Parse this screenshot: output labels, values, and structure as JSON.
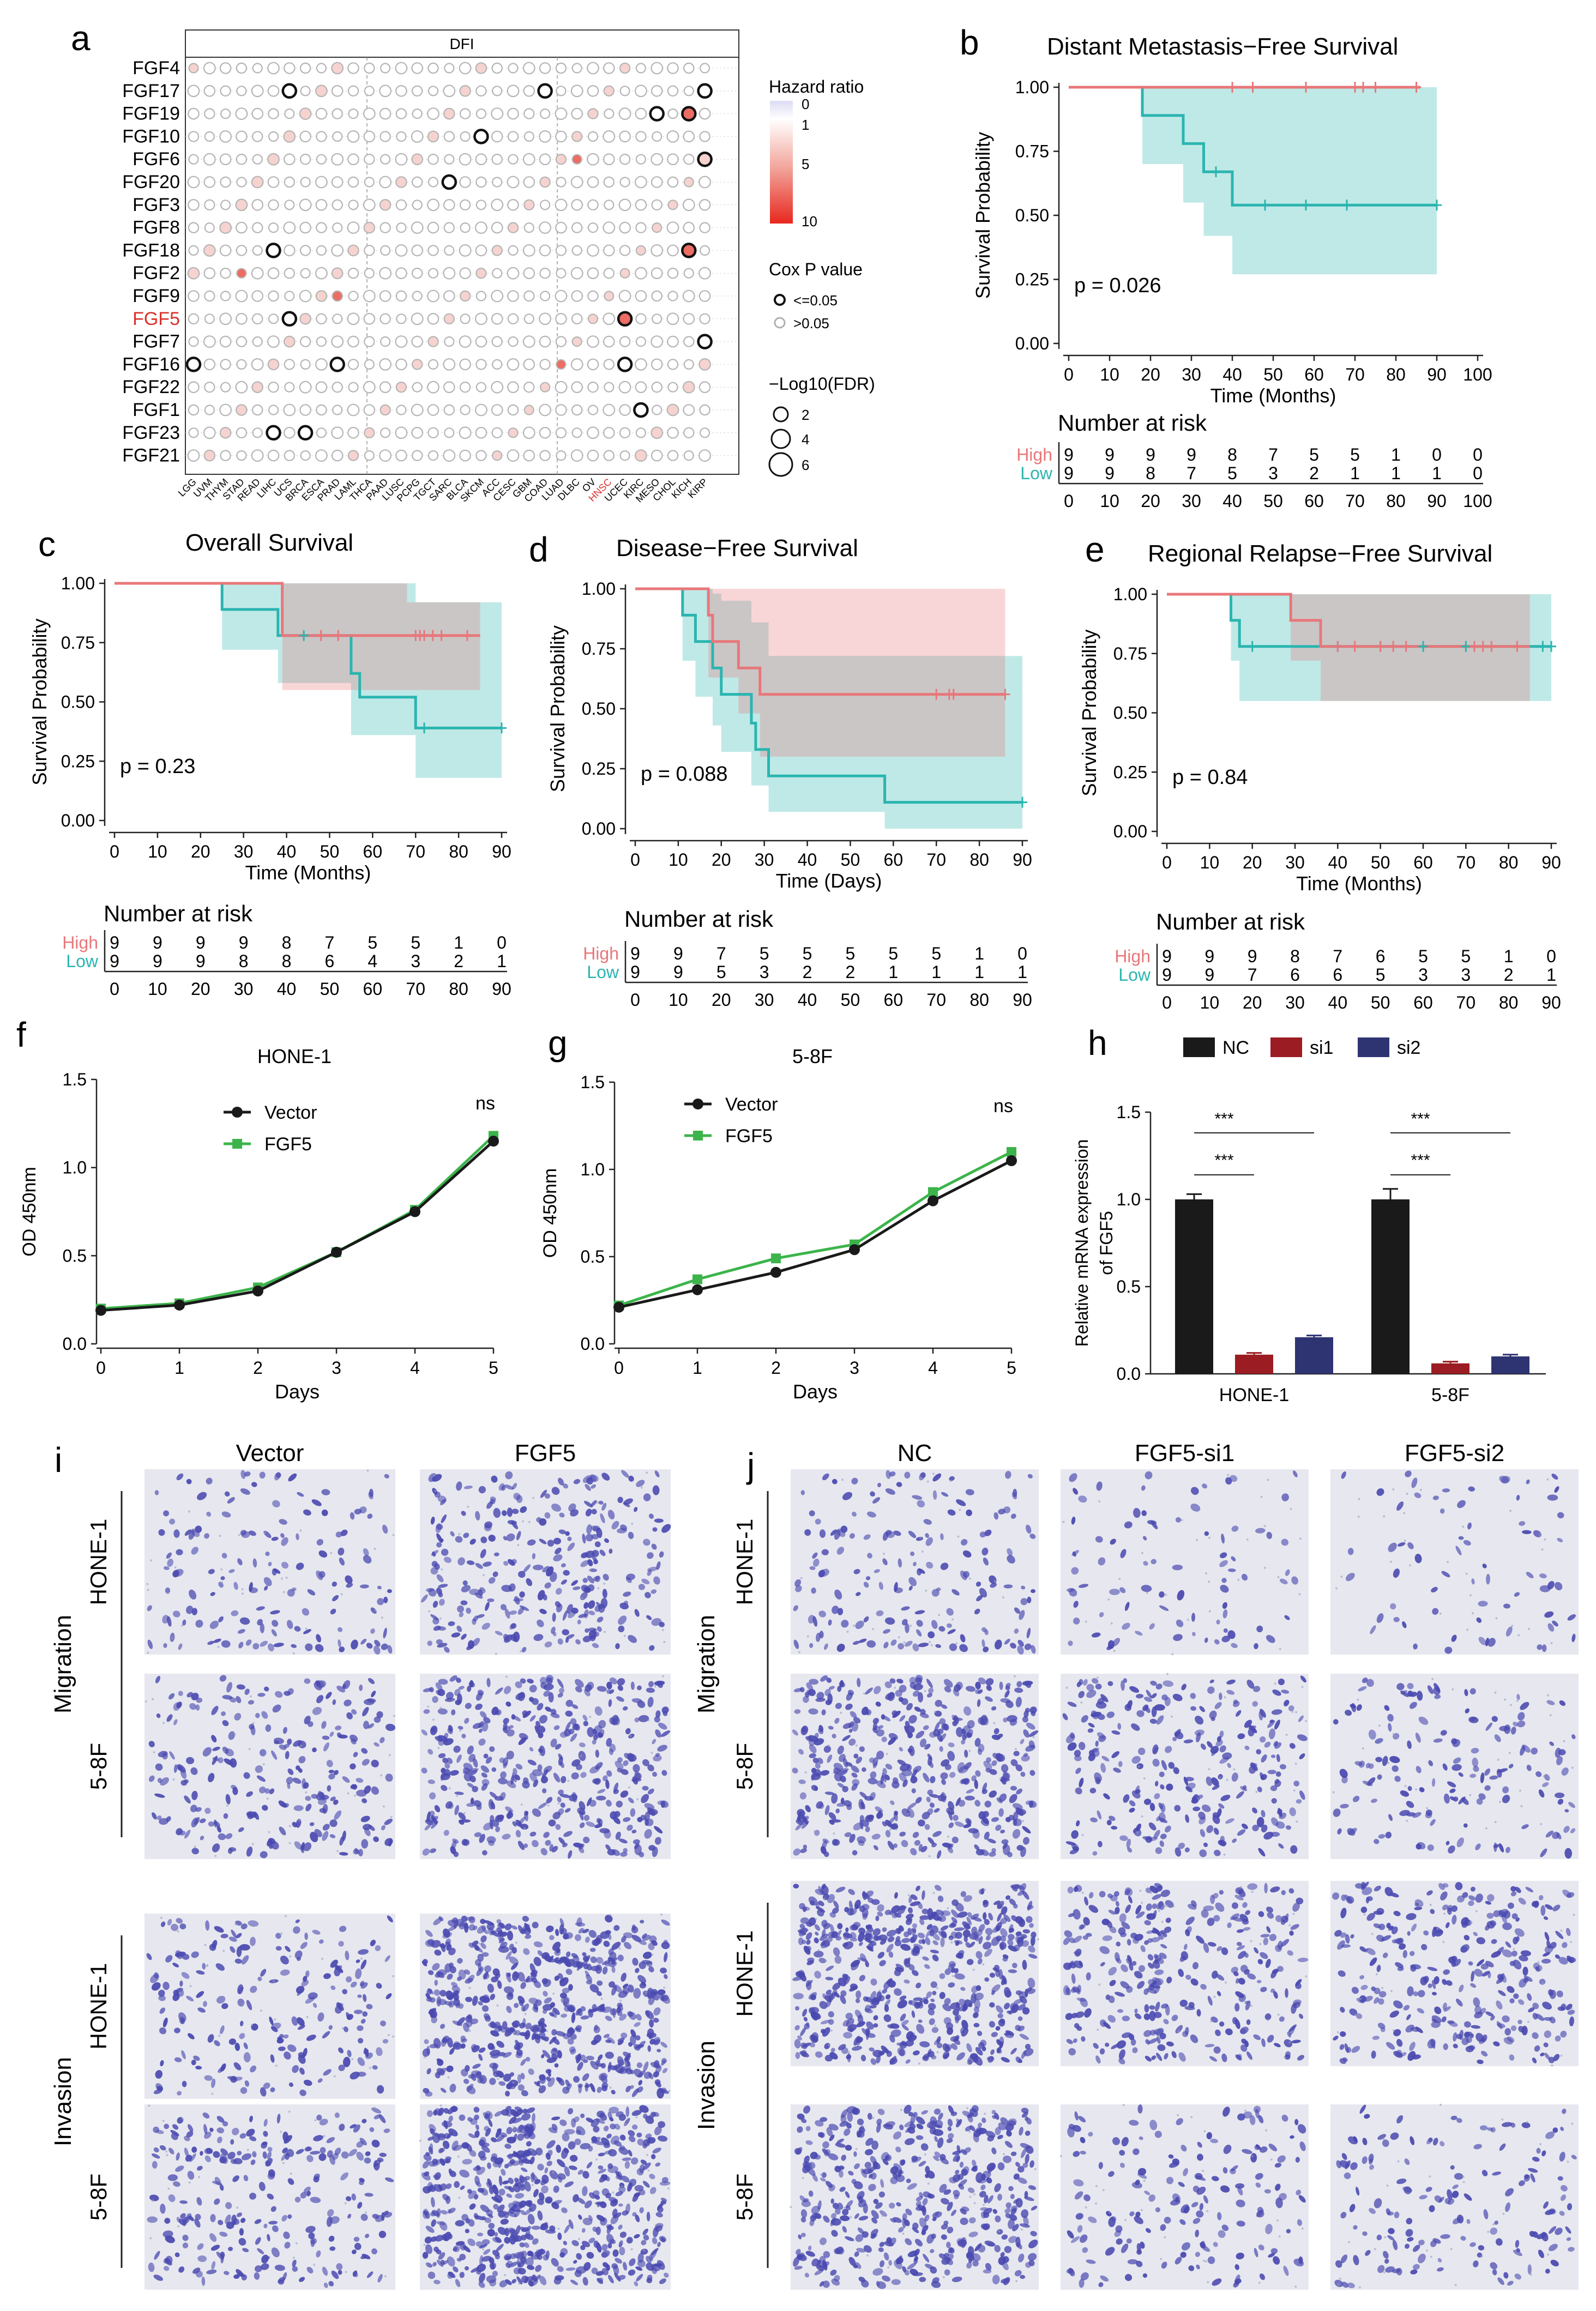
{
  "panel_labels": {
    "a": "a",
    "b": "b",
    "c": "c",
    "d": "d",
    "e": "e",
    "f": "f",
    "g": "g",
    "h": "h",
    "i": "i",
    "j": "j"
  },
  "panel_a": {
    "strip": "DFI",
    "genes": [
      "FGF4",
      "FGF17",
      "FGF19",
      "FGF10",
      "FGF6",
      "FGF20",
      "FGF3",
      "FGF8",
      "FGF18",
      "FGF2",
      "FGF9",
      "FGF5",
      "FGF7",
      "FGF16",
      "FGF22",
      "FGF1",
      "FGF23",
      "FGF21"
    ],
    "highlight_gene": "FGF5",
    "cancers": [
      "LGG",
      "UVM",
      "THYM",
      "STAD",
      "READ",
      "LIHC",
      "UCS",
      "BRCA",
      "ESCA",
      "PRAD",
      "LAML",
      "THCA",
      "PAAD",
      "LUSC",
      "PCPG",
      "TGCT",
      "SARC",
      "BLCA",
      "SKCM",
      "ACC",
      "CESC",
      "GBM",
      "COAD",
      "LUAD",
      "DLBC",
      "OV",
      "HNSC",
      "UCEC",
      "KIRC",
      "MESO",
      "CHOL",
      "KICH",
      "KIRP"
    ],
    "highlight_cancer": "HNSC",
    "legend": {
      "hr_title": "Hazard ratio",
      "hr_ticks": [
        "0",
        "1",
        "5",
        "10"
      ],
      "p_title": "Cox P value",
      "p_items": [
        "<=0.05",
        ">0.05"
      ],
      "fdr_title": "−Log10(FDR)",
      "fdr_items": [
        "2",
        "4",
        "6"
      ]
    },
    "significant": [
      {
        "gene": "FGF17",
        "cancer": "UCS"
      },
      {
        "gene": "FGF17",
        "cancer": "COAD"
      },
      {
        "gene": "FGF17",
        "cancer": "KIRP"
      },
      {
        "gene": "FGF19",
        "cancer": "MESO"
      },
      {
        "gene": "FGF19",
        "cancer": "KICH"
      },
      {
        "gene": "FGF10",
        "cancer": "SKCM"
      },
      {
        "gene": "FGF6",
        "cancer": "KIRP"
      },
      {
        "gene": "FGF20",
        "cancer": "SARC"
      },
      {
        "gene": "FGF18",
        "cancer": "LIHC"
      },
      {
        "gene": "FGF18",
        "cancer": "KICH"
      },
      {
        "gene": "FGF5",
        "cancer": "UCS"
      },
      {
        "gene": "FGF5",
        "cancer": "UCEC"
      },
      {
        "gene": "FGF7",
        "cancer": "KIRP"
      },
      {
        "gene": "FGF16",
        "cancer": "LGG"
      },
      {
        "gene": "FGF16",
        "cancer": "PRAD"
      },
      {
        "gene": "FGF16",
        "cancer": "UCEC"
      },
      {
        "gene": "FGF1",
        "cancer": "KIRC"
      },
      {
        "gene": "FGF23",
        "cancer": "LIHC"
      },
      {
        "gene": "FGF23",
        "cancer": "BRCA"
      }
    ],
    "red_cells": [
      {
        "gene": "FGF19",
        "cancer": "KICH"
      },
      {
        "gene": "FGF5",
        "cancer": "UCEC"
      },
      {
        "gene": "FGF18",
        "cancer": "KICH"
      },
      {
        "gene": "FGF2",
        "cancer": "STAD"
      },
      {
        "gene": "FGF9",
        "cancer": "PRAD"
      },
      {
        "gene": "FGF16",
        "cancer": "LUAD"
      },
      {
        "gene": "FGF6",
        "cancer": "DLBC"
      }
    ]
  },
  "km": {
    "risk_title": "Number at risk",
    "high_label": "High",
    "low_label": "Low",
    "high_color": "#e8777a",
    "low_color": "#2bb5b0",
    "ylabel": "Survival Probability",
    "y_ticks": [
      "0.00",
      "0.25",
      "0.50",
      "0.75",
      "1.00"
    ],
    "panels": [
      {
        "id": "b",
        "title": "Distant Metastasis−Free Survival",
        "xlabel": "Time (Months)",
        "p": "p = 0.026",
        "x_ticks": [
          0,
          10,
          20,
          30,
          40,
          50,
          60,
          70,
          80,
          90,
          100
        ],
        "xmax": 100,
        "high_risk": [
          "9",
          "9",
          "9",
          "9",
          "8",
          "7",
          "5",
          "5",
          "1",
          "0",
          "0"
        ],
        "low_risk": [
          "9",
          "9",
          "8",
          "7",
          "5",
          "3",
          "2",
          "1",
          "1",
          "1",
          "0"
        ],
        "high_steps": [
          [
            0,
            1.0
          ],
          [
            86,
            1.0
          ]
        ],
        "low_steps": [
          [
            0,
            1.0
          ],
          [
            18,
            1.0
          ],
          [
            18,
            0.89
          ],
          [
            28,
            0.89
          ],
          [
            28,
            0.78
          ],
          [
            33,
            0.78
          ],
          [
            33,
            0.67
          ],
          [
            40,
            0.67
          ],
          [
            40,
            0.54
          ],
          [
            90,
            0.54
          ]
        ],
        "high_band": [
          [
            0,
            1.0,
            1.0
          ],
          [
            86,
            1.0,
            1.0
          ]
        ],
        "low_band": [
          [
            0,
            1.0,
            1.0
          ],
          [
            18,
            1.0,
            1.0
          ],
          [
            18,
            0.7,
            1.0
          ],
          [
            28,
            0.7,
            1.0
          ],
          [
            28,
            0.55,
            1.0
          ],
          [
            33,
            0.55,
            1.0
          ],
          [
            33,
            0.42,
            1.0
          ],
          [
            40,
            0.42,
            1.0
          ],
          [
            40,
            0.27,
            1.0
          ],
          [
            90,
            0.27,
            1.0
          ]
        ],
        "high_censor": [
          40,
          45,
          58,
          70,
          72,
          75,
          85
        ],
        "low_censor": [
          36,
          48,
          58,
          68,
          90
        ]
      },
      {
        "id": "c",
        "title": "Overall Survival",
        "xlabel": "Time (Months)",
        "p": "p = 0.23",
        "x_ticks": [
          0,
          10,
          20,
          30,
          40,
          50,
          60,
          70,
          80,
          90
        ],
        "xmax": 90,
        "high_risk": [
          "9",
          "9",
          "9",
          "9",
          "8",
          "7",
          "5",
          "5",
          "1",
          "0"
        ],
        "low_risk": [
          "9",
          "9",
          "9",
          "8",
          "8",
          "6",
          "4",
          "3",
          "2",
          "1"
        ],
        "high_steps": [
          [
            0,
            1.0
          ],
          [
            39,
            1.0
          ],
          [
            39,
            0.78
          ],
          [
            85,
            0.78
          ]
        ],
        "low_steps": [
          [
            0,
            1.0
          ],
          [
            25,
            1.0
          ],
          [
            25,
            0.89
          ],
          [
            38,
            0.89
          ],
          [
            38,
            0.78
          ],
          [
            55,
            0.78
          ],
          [
            55,
            0.62
          ],
          [
            57,
            0.62
          ],
          [
            57,
            0.52
          ],
          [
            70,
            0.52
          ],
          [
            70,
            0.39
          ],
          [
            90,
            0.39
          ]
        ],
        "high_band": [
          [
            0,
            1.0,
            1.0
          ],
          [
            39,
            1.0,
            1.0
          ],
          [
            39,
            0.55,
            1.0
          ],
          [
            68,
            0.55,
            1.0
          ],
          [
            68,
            0.55,
            0.92
          ],
          [
            85,
            0.55,
            0.92
          ]
        ],
        "low_band": [
          [
            0,
            1.0,
            1.0
          ],
          [
            25,
            1.0,
            1.0
          ],
          [
            25,
            0.72,
            1.0
          ],
          [
            38,
            0.72,
            1.0
          ],
          [
            38,
            0.58,
            1.0
          ],
          [
            55,
            0.58,
            1.0
          ],
          [
            55,
            0.36,
            1.0
          ],
          [
            70,
            0.36,
            1.0
          ],
          [
            70,
            0.18,
            0.92
          ],
          [
            90,
            0.18,
            0.92
          ]
        ],
        "high_censor": [
          48,
          52,
          70,
          71,
          72,
          74,
          76,
          82
        ],
        "low_censor": [
          44,
          72,
          90
        ]
      },
      {
        "id": "d",
        "title": "Disease−Free Survival",
        "xlabel": "Time (Days)",
        "p": "p = 0.088",
        "x_ticks": [
          0,
          10,
          20,
          30,
          40,
          50,
          60,
          70,
          80,
          90
        ],
        "xmax": 90,
        "high_risk": [
          "9",
          "9",
          "7",
          "5",
          "5",
          "5",
          "5",
          "5",
          "1",
          "0"
        ],
        "low_risk": [
          "9",
          "9",
          "5",
          "3",
          "2",
          "2",
          "1",
          "1",
          "1",
          "1"
        ],
        "high_steps": [
          [
            0,
            1.0
          ],
          [
            17,
            1.0
          ],
          [
            17,
            0.89
          ],
          [
            18,
            0.89
          ],
          [
            18,
            0.78
          ],
          [
            24,
            0.78
          ],
          [
            24,
            0.67
          ],
          [
            29,
            0.67
          ],
          [
            29,
            0.56
          ],
          [
            86,
            0.56
          ]
        ],
        "low_steps": [
          [
            0,
            1.0
          ],
          [
            11,
            1.0
          ],
          [
            11,
            0.89
          ],
          [
            14,
            0.89
          ],
          [
            14,
            0.78
          ],
          [
            18,
            0.78
          ],
          [
            18,
            0.67
          ],
          [
            20,
            0.67
          ],
          [
            20,
            0.56
          ],
          [
            27,
            0.56
          ],
          [
            27,
            0.44
          ],
          [
            28,
            0.44
          ],
          [
            28,
            0.33
          ],
          [
            31,
            0.33
          ],
          [
            31,
            0.22
          ],
          [
            58,
            0.22
          ],
          [
            58,
            0.11
          ],
          [
            90,
            0.11
          ]
        ],
        "high_band": [
          [
            0,
            1.0,
            1.0
          ],
          [
            17,
            1.0,
            1.0
          ],
          [
            17,
            0.63,
            1.0
          ],
          [
            24,
            0.63,
            1.0
          ],
          [
            24,
            0.48,
            1.0
          ],
          [
            29,
            0.48,
            1.0
          ],
          [
            29,
            0.3,
            1.0
          ],
          [
            86,
            0.3,
            1.0
          ]
        ],
        "low_band": [
          [
            0,
            1.0,
            1.0
          ],
          [
            11,
            1.0,
            1.0
          ],
          [
            11,
            0.7,
            1.0
          ],
          [
            14,
            0.7,
            1.0
          ],
          [
            14,
            0.55,
            1.0
          ],
          [
            18,
            0.55,
            1.0
          ],
          [
            18,
            0.43,
            0.98
          ],
          [
            20,
            0.43,
            0.98
          ],
          [
            20,
            0.32,
            0.95
          ],
          [
            27,
            0.32,
            0.95
          ],
          [
            27,
            0.18,
            0.86
          ],
          [
            31,
            0.18,
            0.86
          ],
          [
            31,
            0.07,
            0.72
          ],
          [
            58,
            0.07,
            0.72
          ],
          [
            58,
            0.0,
            0.72
          ],
          [
            90,
            0.0,
            0.72
          ]
        ],
        "high_censor": [
          70,
          73,
          74,
          86
        ],
        "low_censor": [
          90
        ]
      },
      {
        "id": "e",
        "title": "Regional Relapse−Free Survival",
        "xlabel": "Time (Months)",
        "p": "p = 0.84",
        "x_ticks": [
          0,
          10,
          20,
          30,
          40,
          50,
          60,
          70,
          80,
          90
        ],
        "xmax": 90,
        "high_risk": [
          "9",
          "9",
          "9",
          "8",
          "7",
          "6",
          "5",
          "5",
          "1",
          "0"
        ],
        "low_risk": [
          "9",
          "9",
          "7",
          "6",
          "6",
          "5",
          "3",
          "3",
          "2",
          "1"
        ],
        "high_steps": [
          [
            0,
            1.0
          ],
          [
            16,
            1.0
          ],
          [
            16,
            1.0
          ],
          [
            29,
            1.0
          ],
          [
            29,
            0.89
          ],
          [
            36,
            0.89
          ],
          [
            36,
            0.78
          ],
          [
            85,
            0.78
          ]
        ],
        "low_steps": [
          [
            0,
            1.0
          ],
          [
            15,
            1.0
          ],
          [
            15,
            0.89
          ],
          [
            17,
            0.89
          ],
          [
            17,
            0.78
          ],
          [
            90,
            0.78
          ]
        ],
        "high_band": [
          [
            0,
            1.0,
            1.0
          ],
          [
            29,
            1.0,
            1.0
          ],
          [
            29,
            0.72,
            1.0
          ],
          [
            36,
            0.72,
            1.0
          ],
          [
            36,
            0.55,
            1.0
          ],
          [
            85,
            0.55,
            1.0
          ]
        ],
        "low_band": [
          [
            0,
            1.0,
            1.0
          ],
          [
            15,
            1.0,
            1.0
          ],
          [
            15,
            0.72,
            1.0
          ],
          [
            17,
            0.72,
            1.0
          ],
          [
            17,
            0.55,
            1.0
          ],
          [
            90,
            0.55,
            1.0
          ]
        ],
        "high_censor": [
          40,
          44,
          50,
          53,
          56,
          72,
          74,
          76,
          82
        ],
        "low_censor": [
          20,
          40,
          50,
          60,
          70,
          88,
          90
        ]
      }
    ]
  },
  "chart_data": [
    {
      "type": "line",
      "panel": "f",
      "title": "HONE-1",
      "xlabel": "Days",
      "ylabel": "OD 450nm",
      "x": [
        0,
        1,
        2,
        3,
        4,
        5
      ],
      "ylim": [
        0,
        1.5
      ],
      "y_ticks": [
        "0.0",
        "0.5",
        "1.0",
        "1.5"
      ],
      "annotation": "ns",
      "series": [
        {
          "name": "Vector",
          "color": "#1a1a1a",
          "values": [
            0.19,
            0.22,
            0.3,
            0.52,
            0.75,
            1.15
          ]
        },
        {
          "name": "FGF5",
          "color": "#3cb44b",
          "values": [
            0.2,
            0.23,
            0.32,
            0.52,
            0.76,
            1.18
          ]
        }
      ]
    },
    {
      "type": "line",
      "panel": "g",
      "title": "5-8F",
      "xlabel": "Days",
      "ylabel": "OD 450nm",
      "x": [
        0,
        1,
        2,
        3,
        4,
        5
      ],
      "ylim": [
        0,
        1.5
      ],
      "y_ticks": [
        "0.0",
        "0.5",
        "1.0",
        "1.5"
      ],
      "annotation": "ns",
      "series": [
        {
          "name": "Vector",
          "color": "#1a1a1a",
          "values": [
            0.21,
            0.31,
            0.41,
            0.54,
            0.82,
            1.05
          ]
        },
        {
          "name": "FGF5",
          "color": "#3cb44b",
          "values": [
            0.22,
            0.37,
            0.49,
            0.57,
            0.87,
            1.1
          ]
        }
      ]
    },
    {
      "type": "bar",
      "panel": "h",
      "categories": [
        "HONE-1",
        "5-8F"
      ],
      "ylabel_line1": "Relative mRNA expression",
      "ylabel_line2": "of FGF5",
      "ylim": [
        0,
        1.5
      ],
      "y_ticks": [
        "0.0",
        "0.5",
        "1.0",
        "1.5"
      ],
      "sig": "***",
      "series": [
        {
          "name": "NC",
          "color": "#1a1a1a",
          "values": [
            1.0,
            1.0
          ],
          "err": [
            0.03,
            0.06
          ]
        },
        {
          "name": "si1",
          "color": "#9b1c22",
          "values": [
            0.11,
            0.06
          ],
          "err": [
            0.01,
            0.01
          ]
        },
        {
          "name": "si2",
          "color": "#2e3472",
          "values": [
            0.21,
            0.1
          ],
          "err": [
            0.01,
            0.01
          ]
        }
      ]
    }
  ],
  "panel_i": {
    "cols": [
      "Vector",
      "FGF5"
    ],
    "group_top": "Migration",
    "group_bottom": "Invasion",
    "rows": [
      "HONE-1",
      "5-8F"
    ]
  },
  "panel_j": {
    "cols": [
      "NC",
      "FGF5-si1",
      "FGF5-si2"
    ],
    "group_top": "Migration",
    "group_bottom": "Invasion",
    "rows": [
      "HONE-1",
      "5-8F"
    ]
  },
  "colors": {
    "cell_bg": "#e7e8ef",
    "cell_stain": "#4a49b0",
    "grid": "#c9c9c9"
  }
}
